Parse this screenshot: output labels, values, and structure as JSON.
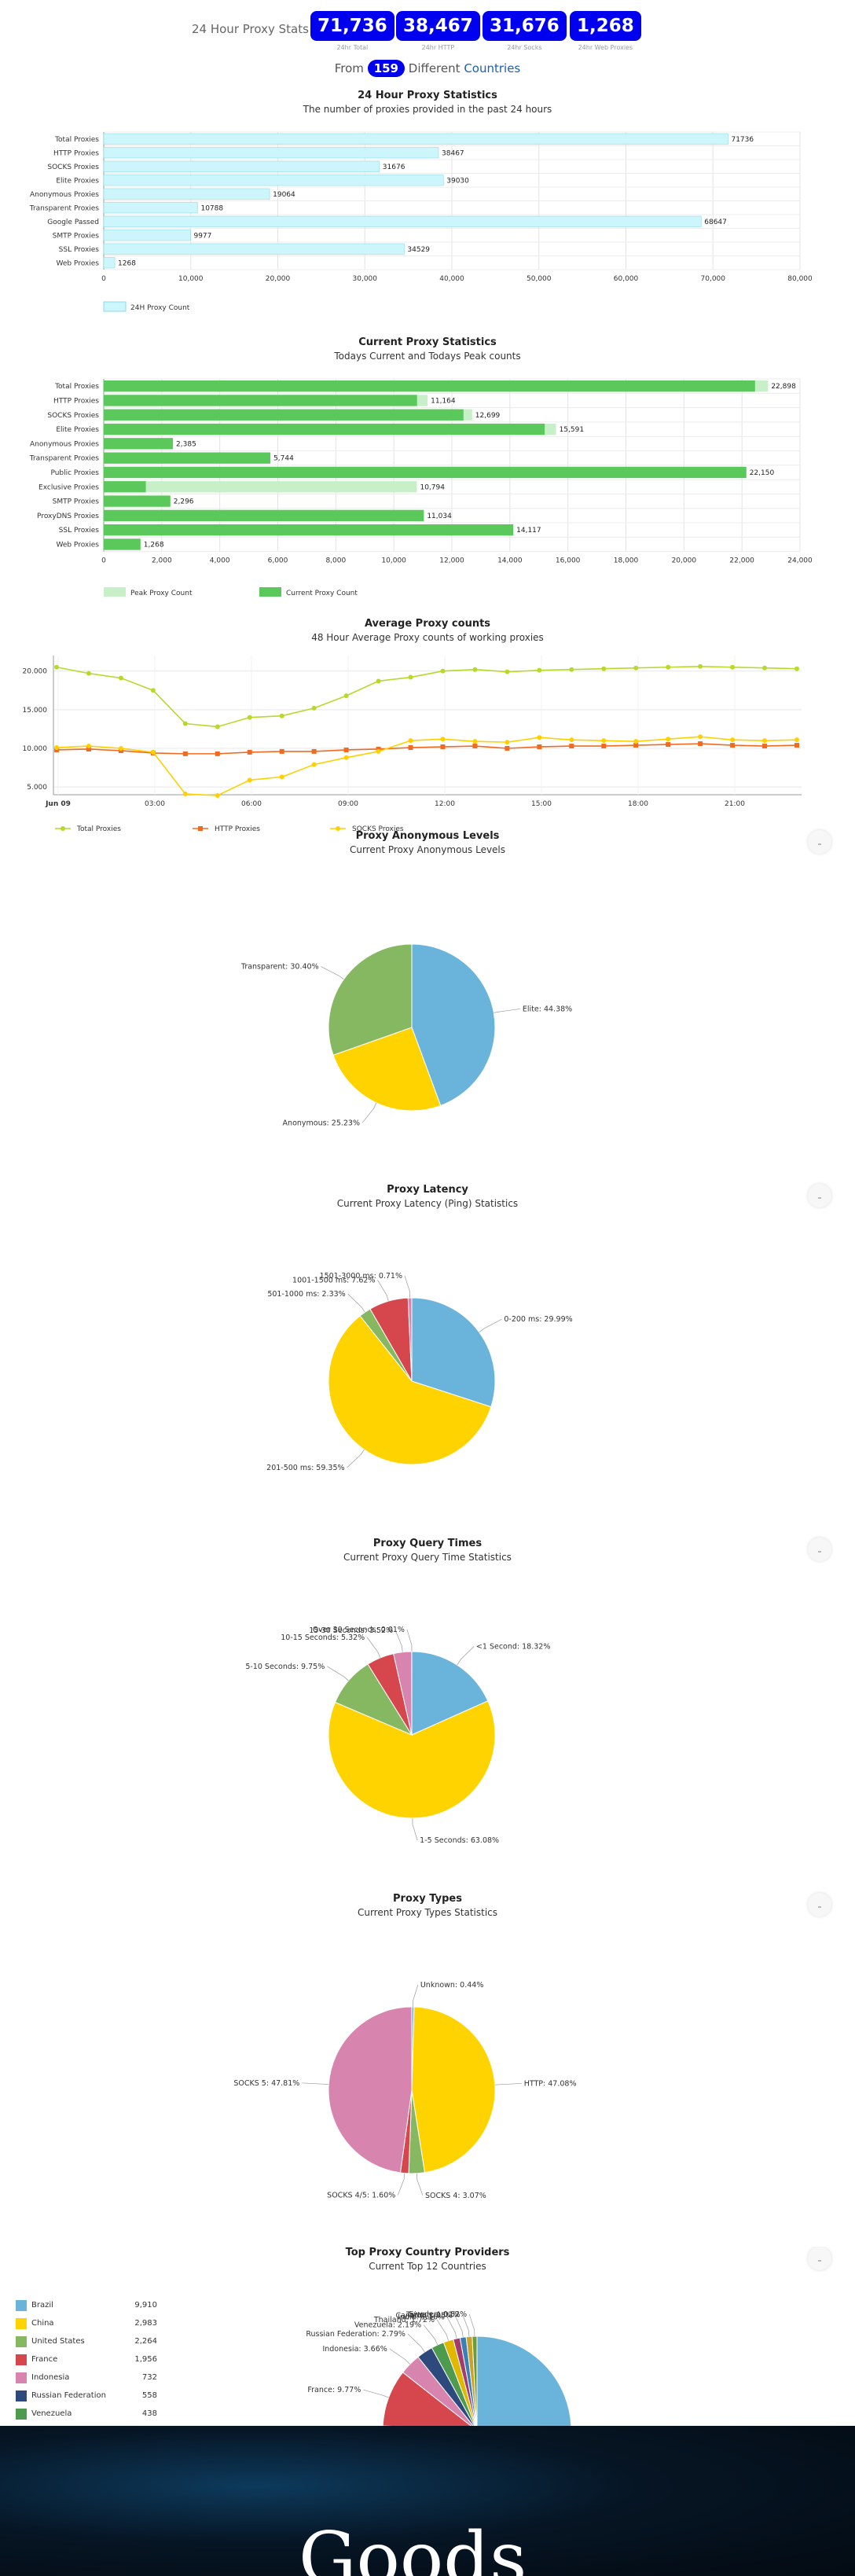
{
  "header": {
    "stats_label": "24 Hour Proxy Stats",
    "stats": [
      {
        "value": "71,736",
        "caption": "24hr Total"
      },
      {
        "value": "38,467",
        "caption": "24hr HTTP"
      },
      {
        "value": "31,676",
        "caption": "24hr Socks"
      },
      {
        "value": "1,268",
        "caption": "24hr Web Proxies"
      }
    ],
    "from_prefix": "From",
    "country_count": "159",
    "different": "Different",
    "countries_link": "Countries"
  },
  "footer": {
    "banner_text": "Goods"
  },
  "chart_data": [
    {
      "type": "bar",
      "title": "24 Hour Proxy Statistics",
      "subtitle": "The number of proxies provided in the past 24 hours",
      "categories": [
        "Total Proxies",
        "HTTP Proxies",
        "SOCKS Proxies",
        "Elite Proxies",
        "Anonymous Proxies",
        "Transparent Proxies",
        "Google Passed",
        "SMTP Proxies",
        "SSL Proxies",
        "Web Proxies"
      ],
      "series": [
        {
          "name": "24H Proxy Count",
          "values": [
            71736,
            38467,
            31676,
            39030,
            19064,
            10788,
            68647,
            9977,
            34529,
            1268
          ],
          "color": "#ccf6fb"
        }
      ],
      "xlim": [
        0,
        80000
      ],
      "ticks": [
        "0",
        "10,000",
        "20,000",
        "30,000",
        "40,000",
        "50,000",
        "60,000",
        "70,000",
        "80,000"
      ],
      "value_labels": [
        "71736",
        "38467",
        "31676",
        "39030",
        "19064",
        "10788",
        "68647",
        "9977",
        "34529",
        "1268"
      ],
      "grid": true,
      "legend": "bottom-left"
    },
    {
      "type": "bar",
      "title": "Current Proxy Statistics",
      "subtitle": "Todays Current and Todays Peak counts",
      "categories": [
        "Total Proxies",
        "HTTP Proxies",
        "SOCKS Proxies",
        "Elite Proxies",
        "Anonymous Proxies",
        "Transparent Proxies",
        "Public Proxies",
        "Exclusive Proxies",
        "SMTP Proxies",
        "ProxyDNS Proxies",
        "SSL Proxies",
        "Web Proxies"
      ],
      "series": [
        {
          "name": "Peak Proxy Count",
          "values": [
            22898,
            11164,
            12699,
            15591,
            2385,
            5744,
            22150,
            10794,
            2296,
            11034,
            14117,
            1268
          ],
          "color": "#c8f0c8"
        },
        {
          "name": "Current Proxy Count",
          "values": [
            22450,
            10800,
            12400,
            15200,
            2385,
            5744,
            22150,
            1450,
            2296,
            11034,
            14117,
            1268
          ],
          "color": "#5ac85a"
        }
      ],
      "xlim": [
        0,
        24000
      ],
      "ticks": [
        "0",
        "2,000",
        "4,000",
        "6,000",
        "8,000",
        "10,000",
        "12,000",
        "14,000",
        "16,000",
        "18,000",
        "20,000",
        "22,000",
        "24,000"
      ],
      "value_labels": [
        "22,898",
        "11,164",
        "12,699",
        "15,591",
        "2,385",
        "5,744",
        "22,150",
        "10,794",
        "2,296",
        "11,034",
        "14,117",
        "1,268"
      ],
      "grid": true,
      "legend": "bottom-left"
    },
    {
      "type": "line",
      "title": "Average Proxy counts",
      "subtitle": "48 Hour Average Proxy counts of working proxies",
      "x_ticks": [
        "Jun 09",
        "03:00",
        "06:00",
        "09:00",
        "12:00",
        "15:00",
        "18:00",
        "21:00"
      ],
      "y_ticks": [
        "5.000",
        "10.000",
        "15.000",
        "20.000"
      ],
      "ylim": [
        4000,
        22000
      ],
      "series": [
        {
          "name": "Total Proxies",
          "color": "#b6d92a",
          "marker": "circle",
          "values": [
            20500,
            19700,
            19100,
            17500,
            13200,
            12800,
            14000,
            14200,
            15200,
            16800,
            18700,
            19200,
            20000,
            20200,
            19900,
            20100,
            20200,
            20300,
            20400,
            20500,
            20600,
            20500,
            20400,
            20300
          ]
        },
        {
          "name": "HTTP Proxies",
          "color": "#f26a21",
          "marker": "square",
          "values": [
            9800,
            9900,
            9700,
            9400,
            9300,
            9300,
            9500,
            9600,
            9600,
            9800,
            9900,
            10100,
            10200,
            10300,
            10000,
            10200,
            10300,
            10300,
            10400,
            10500,
            10600,
            10400,
            10300,
            10400
          ]
        },
        {
          "name": "SOCKS Proxies",
          "color": "#ffd000",
          "marker": "circle",
          "values": [
            10100,
            10300,
            10000,
            9500,
            4100,
            3900,
            5900,
            6300,
            7900,
            8800,
            9600,
            11000,
            11200,
            10900,
            10800,
            11400,
            11100,
            11000,
            10900,
            11200,
            11500,
            11100,
            11000,
            11100
          ]
        }
      ],
      "legend": "bottom-left"
    },
    {
      "type": "pie",
      "title": "Proxy Anonymous Levels",
      "subtitle": "Current Proxy Anonymous Levels",
      "slices": [
        {
          "label": "Elite",
          "value": 44.38,
          "text": "Elite: 44.38%",
          "color": "#6ab4dc"
        },
        {
          "label": "Anonymous",
          "value": 25.23,
          "text": "Anonymous: 25.23%",
          "color": "#ffd300"
        },
        {
          "label": "Transparent",
          "value": 30.4,
          "text": "Transparent: 30.40%",
          "color": "#86b861"
        }
      ]
    },
    {
      "type": "pie",
      "title": "Proxy Latency",
      "subtitle": "Current Proxy Latency (Ping) Statistics",
      "slices": [
        {
          "label": "0-200 ms",
          "value": 29.99,
          "text": "0-200 ms: 29.99%",
          "color": "#6ab4dc"
        },
        {
          "label": "201-500 ms",
          "value": 59.35,
          "text": "201-500 ms: 59.35%",
          "color": "#ffd300"
        },
        {
          "label": "501-1000 ms",
          "value": 2.33,
          "text": "501-1000 ms: 2.33%",
          "color": "#86b861"
        },
        {
          "label": "1001-1500 ms",
          "value": 7.62,
          "text": "1001-1500 ms: 7.62%",
          "color": "#d5474c"
        },
        {
          "label": "1501-3000 ms",
          "value": 0.71,
          "text": "1501-3000 ms: 0.71%",
          "color": "#d784ae"
        }
      ]
    },
    {
      "type": "pie",
      "title": "Proxy Query Times",
      "subtitle": "Current Proxy Query Time Statistics",
      "slices": [
        {
          "label": "<1 Second",
          "value": 18.32,
          "text": "<1 Second: 18.32%",
          "color": "#6ab4dc"
        },
        {
          "label": "1-5 Seconds",
          "value": 63.08,
          "text": "1-5 Seconds: 63.08%",
          "color": "#ffd300"
        },
        {
          "label": "5-10 Seconds",
          "value": 9.75,
          "text": "5-10 Seconds: 9.75%",
          "color": "#86b861"
        },
        {
          "label": "10-15 Seconds",
          "value": 5.32,
          "text": "10-15 Seconds: 5.32%",
          "color": "#d5474c"
        },
        {
          "label": "15-30 Seconds",
          "value": 3.52,
          "text": "15-30 Seconds: 3.52%",
          "color": "#d784ae"
        },
        {
          "label": "Over 30 Seconds",
          "value": 0.01,
          "text": "Over 30 Seconds: 0.01%",
          "color": "#2e4a7d"
        }
      ]
    },
    {
      "type": "pie",
      "title": "Proxy Types",
      "subtitle": "Current Proxy Types Statistics",
      "slices": [
        {
          "label": "Unknown",
          "value": 0.44,
          "text": "Unknown: 0.44%",
          "color": "#6ab4dc"
        },
        {
          "label": "HTTP",
          "value": 47.08,
          "text": "HTTP: 47.08%",
          "color": "#ffd300"
        },
        {
          "label": "SOCKS 4",
          "value": 3.07,
          "text": "SOCKS 4: 3.07%",
          "color": "#86b861"
        },
        {
          "label": "SOCKS 4/5",
          "value": 1.6,
          "text": "SOCKS 4/5: 1.60%",
          "color": "#d5474c"
        },
        {
          "label": "SOCKS 5",
          "value": 47.81,
          "text": "SOCKS 5: 47.81%",
          "color": "#d784ae"
        }
      ]
    },
    {
      "type": "pie",
      "title": "Top Proxy Country Providers",
      "subtitle": "Current Top 12 Countries",
      "slices": [
        {
          "label": "Brazil",
          "value": 9910,
          "text": "",
          "color": "#6ab4dc"
        },
        {
          "label": "China",
          "value": 2983,
          "text": "",
          "color": "#ffd300"
        },
        {
          "label": "United States",
          "value": 2264,
          "text": "",
          "color": "#86b861"
        },
        {
          "label": "France",
          "value": 1956,
          "text": "France: 9.77%",
          "color": "#d5474c"
        },
        {
          "label": "Indonesia",
          "value": 732,
          "text": "Indonesia: 3.66%",
          "color": "#d784ae"
        },
        {
          "label": "Russian Federation",
          "value": 558,
          "text": "Russian Federation: 2.79%",
          "color": "#2e4a7d"
        },
        {
          "label": "Venezuela",
          "value": 438,
          "text": "Venezuela: 2.19%",
          "color": "#4e9a4e"
        },
        {
          "label": "Thailand",
          "value": 344,
          "text": "Thailand: 1.72%",
          "color": "#e0b800"
        },
        {
          "label": "India",
          "value": 232,
          "text": "India: 1.16%",
          "color": "#a23b6e"
        },
        {
          "label": "Canada",
          "value": 210,
          "text": "Canada: 1.05%",
          "color": "#3a7fb5"
        },
        {
          "label": "Taiwan",
          "value": 204,
          "text": "Taiwan: 1.02%",
          "color": "#c9a227"
        },
        {
          "label": "Sweden",
          "value": 164,
          "text": "Sweden: 0.82%",
          "color": "#6f9a3a"
        }
      ],
      "legend_table": [
        {
          "name": "Brazil",
          "value": "9,910",
          "color": "#6ab4dc"
        },
        {
          "name": "China",
          "value": "2,983",
          "color": "#ffd300"
        },
        {
          "name": "United States",
          "value": "2,264",
          "color": "#86b861"
        },
        {
          "name": "France",
          "value": "1,956",
          "color": "#d5474c"
        },
        {
          "name": "Indonesia",
          "value": "732",
          "color": "#d784ae"
        },
        {
          "name": "Russian Federation",
          "value": "558",
          "color": "#2e4a7d"
        },
        {
          "name": "Venezuela",
          "value": "438",
          "color": "#4e9a4e"
        }
      ]
    }
  ]
}
